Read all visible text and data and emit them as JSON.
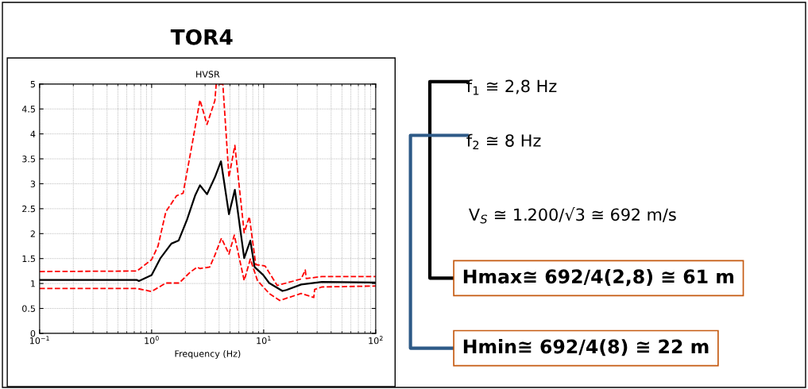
{
  "chart_data": {
    "type": "line",
    "title": "TOR4",
    "subtitle": "HVSR",
    "xlabel": "Frequency (Hz)",
    "log": "x",
    "grid": true,
    "legend": false,
    "xlim": [
      0.1,
      100
    ],
    "xticks": [
      {
        "value": 0.1,
        "label": "10$^{−1}$"
      },
      {
        "value": 1,
        "label": "10$^{0}$"
      },
      {
        "value": 10,
        "label": "10$^{1}$"
      },
      {
        "value": 100,
        "label": "10$^{2}$"
      }
    ],
    "ylim": [
      0,
      5
    ],
    "yticks": [
      0,
      0.5,
      1,
      1.5,
      2,
      2.5,
      3,
      3.5,
      4,
      4.5,
      5
    ],
    "series": [
      {
        "color": "#ff0000",
        "line_style": "dashed",
        "x": [
          0.1,
          0.74,
          1.0,
          1.14,
          1.34,
          1.67,
          1.91,
          2.31,
          2.7,
          3.12,
          3.67,
          3.77,
          4.32,
          4.9,
          5.53,
          6.7,
          7.45,
          8.5,
          10.3,
          13.2,
          21.6,
          23.5,
          24,
          33,
          100
        ],
        "values": [
          1.24,
          1.25,
          1.48,
          1.75,
          2.44,
          2.76,
          2.81,
          3.82,
          4.68,
          4.19,
          4.67,
          5.0,
          5.0,
          3.13,
          3.77,
          2.02,
          2.34,
          1.38,
          1.35,
          0.96,
          1.09,
          1.27,
          1.1,
          1.14,
          1.14
        ]
      },
      {
        "color": "#ff0000",
        "line_style": "dashed",
        "x": [
          0.1,
          0.74,
          1.0,
          1.34,
          1.76,
          2.19,
          2.55,
          2.7,
          3.3,
          3.67,
          4.2,
          4.9,
          5.47,
          6.7,
          7.6,
          8.8,
          11.2,
          13.9,
          21.6,
          28,
          28.5,
          33,
          100
        ],
        "values": [
          0.9,
          0.9,
          0.84,
          1.01,
          1.01,
          1.22,
          1.33,
          1.3,
          1.33,
          1.57,
          1.91,
          1.59,
          1.97,
          1.06,
          1.49,
          1.06,
          0.8,
          0.66,
          0.8,
          0.72,
          0.88,
          0.93,
          0.95
        ]
      },
      {
        "color": "#000000",
        "line_style": "solid",
        "x": [
          0.1,
          0.74,
          0.77,
          1.0,
          1.2,
          1.5,
          1.74,
          2.07,
          2.44,
          2.7,
          3.12,
          3.67,
          4.16,
          4.9,
          5.53,
          6.7,
          7.6,
          8.3,
          9.9,
          11.2,
          14.7,
          16,
          21.6,
          33,
          100
        ],
        "values": [
          1.07,
          1.07,
          1.05,
          1.17,
          1.51,
          1.8,
          1.86,
          2.28,
          2.76,
          2.97,
          2.79,
          3.13,
          3.45,
          2.39,
          2.88,
          1.51,
          1.86,
          1.33,
          1.17,
          1.01,
          0.85,
          0.87,
          0.98,
          1.03,
          1.02
        ]
      }
    ],
    "annotations": [
      "f$_{1}$ ≅ 2,8 Hz",
      "f$_{2}$ ≅ 8 Hz",
      "V$_{S}$ ≅ 1.200/√3 ≅ 692 m/s",
      "Hmax≅ 692/4(2,8) ≅ 61 m",
      "Hmin≅ 692/4(8) ≅ 22 m"
    ]
  }
}
